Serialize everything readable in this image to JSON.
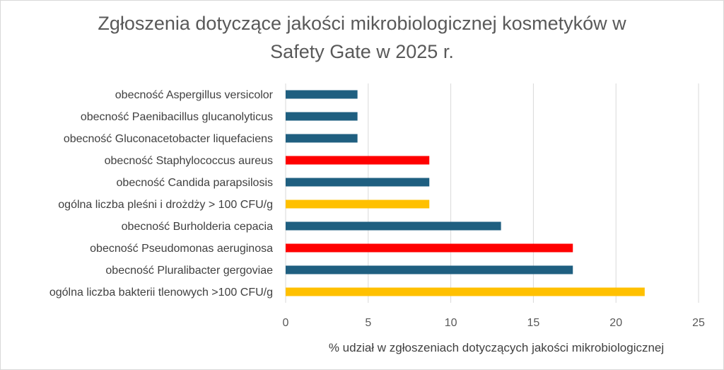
{
  "chart_data": {
    "type": "bar",
    "orientation": "horizontal",
    "title_lines": [
      "Zgłoszenia dotyczące jakości mikrobiologicznej kosmetyków w",
      "Safety Gate w 2025 r."
    ],
    "xlabel": "% udział w zgłoszeniach dotyczących jakości mikrobiologicznej",
    "ylabel": "",
    "xlim": [
      0,
      25
    ],
    "xticks": [
      0,
      5,
      10,
      15,
      20,
      25
    ],
    "grid": true,
    "categories": [
      "obecność Aspergillus versicolor",
      "obecność Paenibacillus glucanolyticus",
      "obecność Gluconacetobacter liquefaciens",
      "obecność Staphylococcus aureus",
      "obecność Candida parapsilosis",
      "ogólna liczba pleśni i drożdży > 100 CFU/g",
      "obecność Burholderia cepacia",
      "obecność Pseudomonas aeruginosa",
      "obecność Pluralibacter gergoviae",
      "ogólna liczba bakterii tlenowych >100 CFU/g"
    ],
    "values": [
      4.35,
      4.35,
      4.35,
      8.7,
      8.7,
      8.7,
      13.04,
      17.39,
      17.39,
      21.74
    ],
    "bar_colors": [
      "#1f5f80",
      "#1f5f80",
      "#1f5f80",
      "#ff0000",
      "#1f5f80",
      "#ffc000",
      "#1f5f80",
      "#ff0000",
      "#1f5f80",
      "#ffc000"
    ]
  }
}
